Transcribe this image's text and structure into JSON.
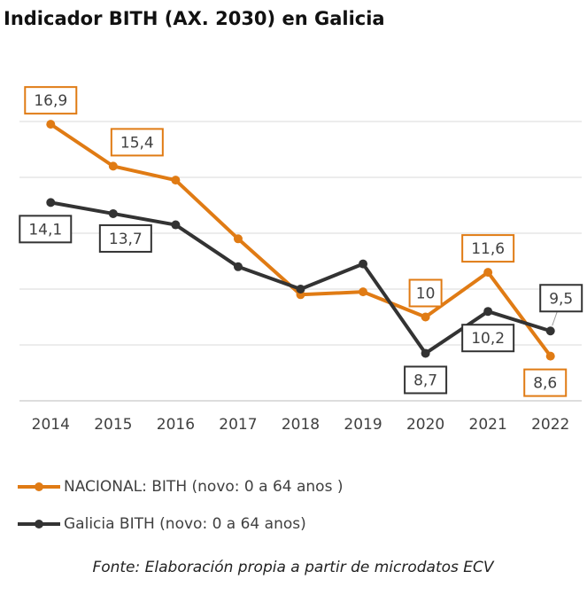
{
  "chart_data": {
    "type": "line",
    "title": "Indicador BITH (AX. 2030) en Galicia",
    "categories": [
      "2014",
      "2015",
      "2016",
      "2017",
      "2018",
      "2019",
      "2020",
      "2021",
      "2022"
    ],
    "series": [
      {
        "name": "NACIONAL: BITH (novo: 0 a 64 anos )",
        "color": "#e07b14",
        "values": [
          16.9,
          15.4,
          14.9,
          12.8,
          10.8,
          10.9,
          10,
          11.6,
          8.6
        ],
        "value_labels": [
          "16,9",
          "15,4",
          null,
          null,
          null,
          null,
          "10",
          "11,6",
          "8,6"
        ]
      },
      {
        "name": "Galicia BITH (novo: 0 a 64 anos)",
        "color": "#333333",
        "values": [
          14.1,
          13.7,
          13.3,
          11.8,
          11.0,
          11.9,
          8.7,
          10.2,
          9.5
        ],
        "value_labels": [
          "14,1",
          "13,7",
          null,
          null,
          null,
          null,
          "8,7",
          "10,2",
          "9,5"
        ]
      }
    ],
    "ylim": [
      7,
      17
    ],
    "yticks": [
      7,
      9,
      11,
      13,
      15,
      17
    ],
    "grid": true,
    "source": "Fonte: Elaboración propia a partir de microdatos ECV"
  }
}
